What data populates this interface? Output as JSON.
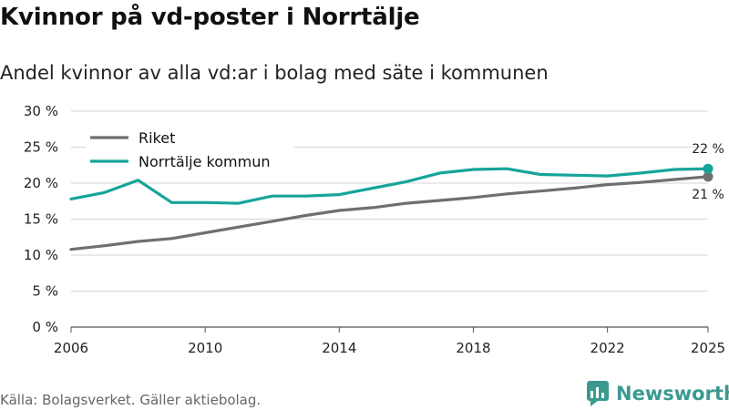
{
  "title": "Kvinnor på vd-poster i Norrtälje",
  "subtitle": "Andel kvinnor av alla vd:ar i bolag med säte i kommunen",
  "source": "Källa: Bolagsverket. Gäller aktiebolag.",
  "brand": {
    "name": "Newsworthy",
    "color": "#3a9a90"
  },
  "chart_data": {
    "type": "line",
    "x": [
      2006,
      2007,
      2008,
      2009,
      2010,
      2011,
      2012,
      2013,
      2014,
      2015,
      2016,
      2017,
      2018,
      2019,
      2020,
      2021,
      2022,
      2023,
      2024,
      2025
    ],
    "x_ticks": [
      2006,
      2010,
      2014,
      2018,
      2022,
      2025
    ],
    "ylim": [
      0,
      30
    ],
    "y_ticks": [
      0,
      5,
      10,
      15,
      20,
      25,
      30
    ],
    "y_tick_labels": [
      "0 %",
      "5 %",
      "10 %",
      "15 %",
      "20 %",
      "25 %",
      "30 %"
    ],
    "grid": true,
    "legend_position": "top-left",
    "series": [
      {
        "name": "Riket",
        "color": "#6f6e73",
        "values": [
          10.8,
          11.3,
          11.9,
          12.3,
          13.1,
          13.9,
          14.7,
          15.5,
          16.2,
          16.6,
          17.2,
          17.6,
          18.0,
          18.5,
          18.9,
          19.3,
          19.8,
          20.1,
          20.5,
          20.9
        ],
        "end_label": "21 %"
      },
      {
        "name": "Norrtälje kommun",
        "color": "#16a49a",
        "values": [
          17.8,
          18.7,
          20.4,
          17.3,
          17.3,
          17.2,
          18.2,
          18.2,
          18.4,
          19.3,
          20.2,
          21.4,
          21.9,
          22.0,
          21.2,
          21.1,
          21.0,
          21.4,
          21.9,
          22.0
        ],
        "end_label": "22 %"
      }
    ]
  }
}
